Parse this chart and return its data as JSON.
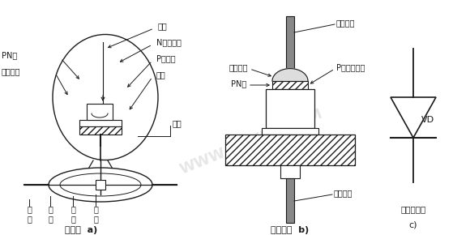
{
  "bg_color": "#ffffff",
  "fig_width": 5.8,
  "fig_height": 2.9,
  "dpi": 100,
  "watermark_text": "WWW.DGXUE.COM",
  "watermark_color": "#c8c8c8",
  "label_a_title": "点触型  a)",
  "label_b_title": "面接触型  b)",
  "label_c_title": "c)",
  "label_c_name": "二极管符号",
  "vd_label": "VD",
  "line_color": "#1a1a1a",
  "text_color": "#1a1a1a"
}
